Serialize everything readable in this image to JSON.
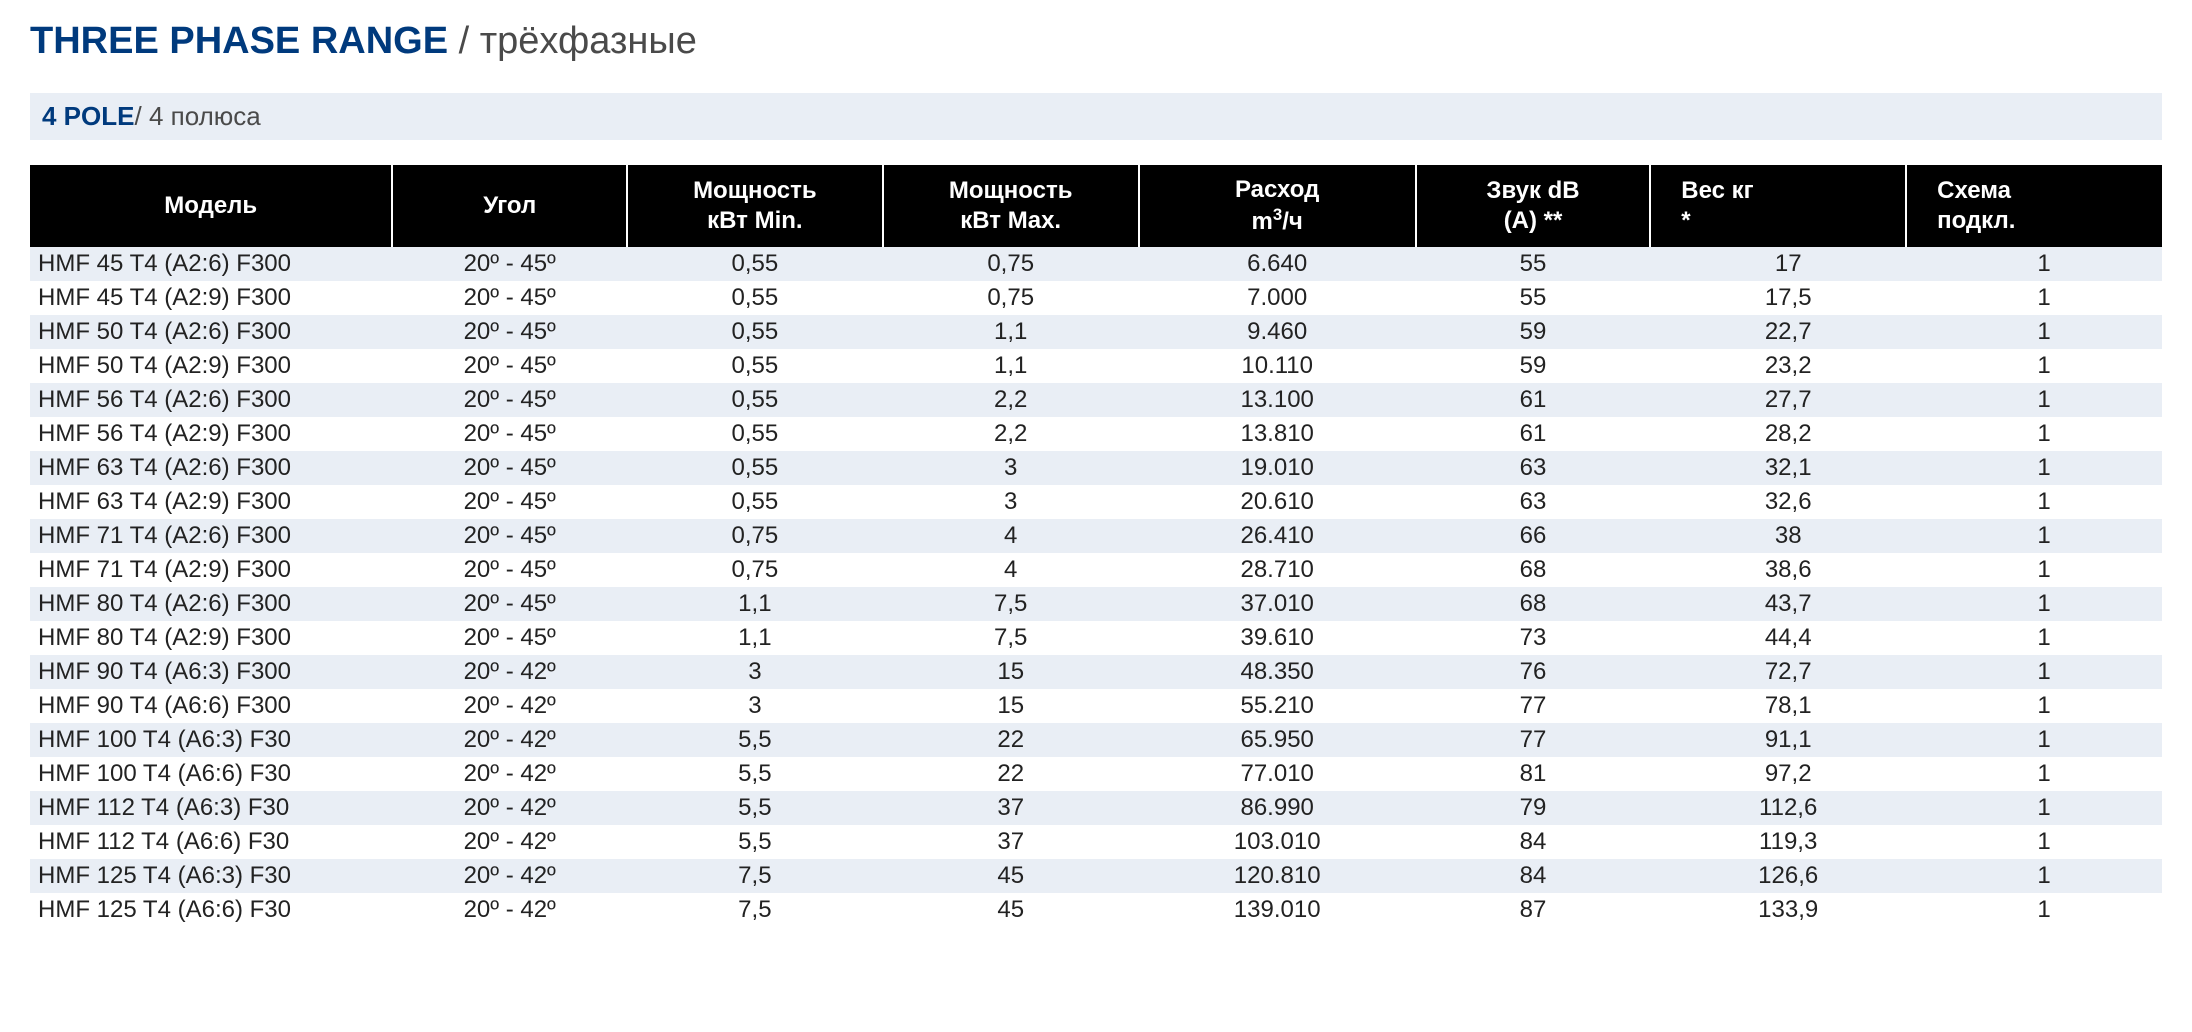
{
  "title": {
    "en": "THREE PHASE RANGE",
    "sep": " / ",
    "ru": "трёхфазные"
  },
  "subtitle": {
    "en": "4 POLE",
    "sep": "/ ",
    "ru": "4 полюса"
  },
  "table": {
    "columns": [
      {
        "key": "model",
        "label": "Модель",
        "class": "col-model"
      },
      {
        "key": "angle",
        "label": "Угол",
        "class": "col-angle"
      },
      {
        "key": "pmin",
        "label": "Мощность\nкВт Min.",
        "class": "col-pmin"
      },
      {
        "key": "pmax",
        "label": "Мощность\nкВт Max.",
        "class": "col-pmax"
      },
      {
        "key": "flow",
        "label": "Расход\nm³/ч",
        "class": "col-flow"
      },
      {
        "key": "sound",
        "label": "Звук dB\n(A) **",
        "class": "col-sound"
      },
      {
        "key": "weight",
        "label": "Вес кг\n*",
        "class": "col-weight th-weight"
      },
      {
        "key": "scheme",
        "label": "Схема\nподкл.",
        "class": "col-scheme th-scheme"
      }
    ],
    "rows": [
      [
        "HMF 45 T4 (A2:6) F300",
        "20º - 45º",
        "0,55",
        "0,75",
        "6.640",
        "55",
        "17",
        "1"
      ],
      [
        "HMF 45 T4 (A2:9) F300",
        "20º - 45º",
        "0,55",
        "0,75",
        "7.000",
        "55",
        "17,5",
        "1"
      ],
      [
        "HMF 50 T4 (A2:6) F300",
        "20º - 45º",
        "0,55",
        "1,1",
        "9.460",
        "59",
        "22,7",
        "1"
      ],
      [
        "HMF 50 T4 (A2:9) F300",
        "20º - 45º",
        "0,55",
        "1,1",
        "10.110",
        "59",
        "23,2",
        "1"
      ],
      [
        "HMF 56 T4 (A2:6) F300",
        "20º - 45º",
        "0,55",
        "2,2",
        "13.100",
        "61",
        "27,7",
        "1"
      ],
      [
        "HMF 56 T4 (A2:9) F300",
        "20º - 45º",
        "0,55",
        "2,2",
        "13.810",
        "61",
        "28,2",
        "1"
      ],
      [
        "HMF 63 T4 (A2:6) F300",
        "20º - 45º",
        "0,55",
        "3",
        "19.010",
        "63",
        "32,1",
        "1"
      ],
      [
        "HMF 63 T4 (A2:9) F300",
        "20º - 45º",
        "0,55",
        "3",
        "20.610",
        "63",
        "32,6",
        "1"
      ],
      [
        "HMF 71 T4 (A2:6) F300",
        "20º - 45º",
        "0,75",
        "4",
        "26.410",
        "66",
        "38",
        "1"
      ],
      [
        "HMF 71 T4 (A2:9) F300",
        "20º - 45º",
        "0,75",
        "4",
        "28.710",
        "68",
        "38,6",
        "1"
      ],
      [
        "HMF 80 T4 (A2:6) F300",
        "20º - 45º",
        "1,1",
        "7,5",
        "37.010",
        "68",
        "43,7",
        "1"
      ],
      [
        "HMF 80 T4 (A2:9) F300",
        "20º - 45º",
        "1,1",
        "7,5",
        "39.610",
        "73",
        "44,4",
        "1"
      ],
      [
        "HMF 90 T4 (A6:3) F300",
        "20º - 42º",
        "3",
        "15",
        "48.350",
        "76",
        "72,7",
        "1"
      ],
      [
        "HMF 90 T4 (A6:6) F300",
        "20º - 42º",
        "3",
        "15",
        "55.210",
        "77",
        "78,1",
        "1"
      ],
      [
        "HMF 100 T4 (A6:3) F30",
        "20º - 42º",
        "5,5",
        "22",
        "65.950",
        "77",
        "91,1",
        "1"
      ],
      [
        "HMF 100 T4 (A6:6) F30",
        "20º - 42º",
        "5,5",
        "22",
        "77.010",
        "81",
        "97,2",
        "1"
      ],
      [
        "HMF 112 T4 (A6:3) F30",
        "20º - 42º",
        "5,5",
        "37",
        "86.990",
        "79",
        "112,6",
        "1"
      ],
      [
        "HMF 112 T4 (A6:6) F30",
        "20º - 42º",
        "5,5",
        "37",
        "103.010",
        "84",
        "119,3",
        "1"
      ],
      [
        "HMF 125 T4 (A6:3) F30",
        "20º - 42º",
        "7,5",
        "45",
        "120.810",
        "84",
        "126,6",
        "1"
      ],
      [
        "HMF 125 T4 (A6:6) F30",
        "20º  - 42º",
        "7,5",
        "45",
        "139.010",
        "87",
        "133,9",
        "1"
      ]
    ],
    "header_bg": "#000000",
    "header_fg": "#ffffff",
    "row_odd_bg": "#e9eef5",
    "row_even_bg": "#ffffff",
    "text_color": "#222222"
  }
}
